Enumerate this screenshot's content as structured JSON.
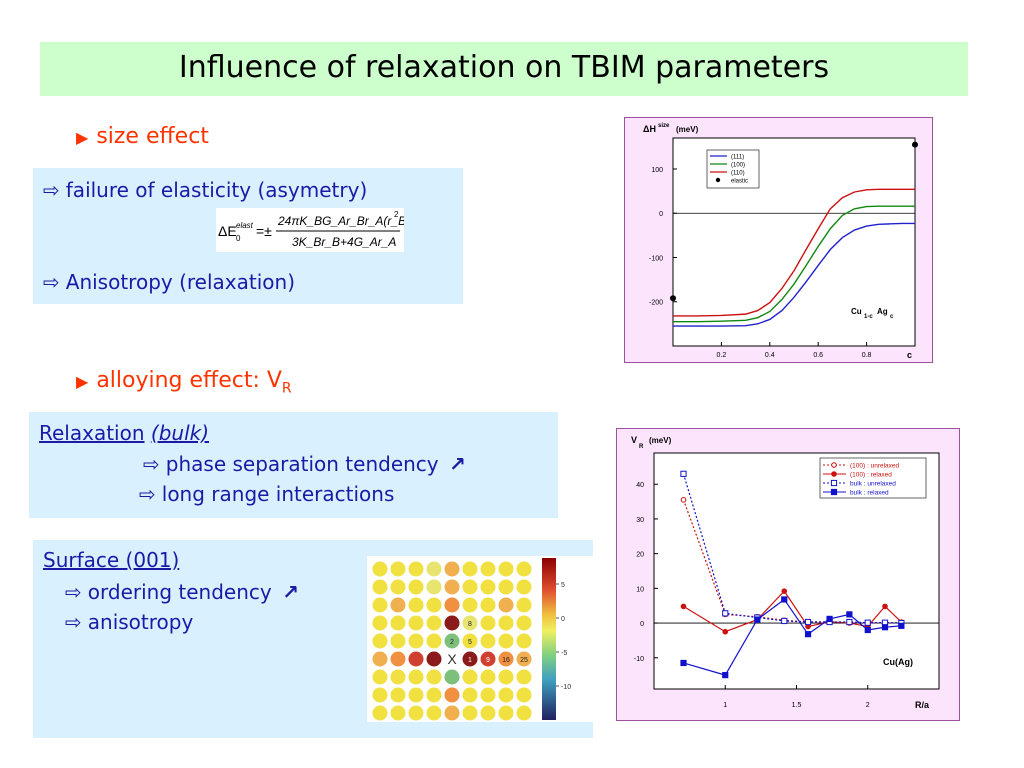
{
  "title": "Influence of relaxation on TBIM parameters",
  "size_effect": {
    "bullet": "size effect",
    "box_line1": "failure of elasticity (asymetry)",
    "box_line2": "Anisotropy (relaxation)",
    "formula": {
      "lhs": "ΔE",
      "lhs_sup": "elast",
      "lhs_sub": "0",
      "eq": "=±",
      "numerator": "24πK_BG_Ar_Br_A(r_B−r_A)",
      "numerator_sup": "2",
      "denominator": "3K_Br_B+4G_Ar_A"
    }
  },
  "alloying_effect": {
    "bullet": "alloying effect: V",
    "bullet_sub": "R"
  },
  "relaxation_box": {
    "heading": "Relaxation",
    "heading_italic": "(bulk)",
    "line1": "phase separation tendency",
    "line2": "long range interactions"
  },
  "surface_box": {
    "heading": "Surface (001)",
    "line1": "ordering tendency",
    "line2": "anisotropy"
  },
  "colors": {
    "accent_red": "#ff3300",
    "text_blue": "#1a1aa6",
    "box_bg": "#d9f0ff",
    "title_bg": "#ccffcc",
    "chart_bg": "#fce4fc"
  },
  "heatmap": {
    "center_label": "X",
    "cell_labels": [
      "8",
      "2",
      "5",
      "1",
      "9",
      "16",
      "25"
    ],
    "colorbar_ticks": [
      "5",
      "0",
      "-5",
      "-10"
    ]
  },
  "chart_data": [
    {
      "type": "line",
      "title": "ΔH",
      "title_sup": "size",
      "title_unit": "(meV)",
      "xlabel": "c",
      "annotation": "Cu",
      "annotation_sub1": "1-c",
      "annotation_mid": "Ag",
      "annotation_sub2": "c",
      "xlim": [
        0,
        1.0
      ],
      "ylim": [
        -300,
        170
      ],
      "xticks": [
        "0.2",
        "0.4",
        "0.6",
        "0.8"
      ],
      "yticks": [
        "100",
        "0",
        "-100",
        "-200"
      ],
      "grid": false,
      "legend_position": "top-center",
      "x": [
        0.0,
        0.1,
        0.2,
        0.3,
        0.35,
        0.4,
        0.45,
        0.5,
        0.55,
        0.6,
        0.65,
        0.7,
        0.75,
        0.8,
        0.85,
        0.9,
        0.95,
        1.0
      ],
      "series": [
        {
          "name": "(111)",
          "color": "#2222cc",
          "values": [
            -255,
            -255,
            -255,
            -254,
            -250,
            -240,
            -220,
            -190,
            -155,
            -118,
            -82,
            -55,
            -38,
            -29,
            -25,
            -24,
            -23,
            -23
          ]
        },
        {
          "name": "(100)",
          "color": "#118811",
          "values": [
            -245,
            -245,
            -244,
            -242,
            -236,
            -222,
            -195,
            -160,
            -118,
            -75,
            -35,
            -5,
            10,
            15,
            16,
            16,
            16,
            16
          ]
        },
        {
          "name": "(110)",
          "color": "#cc1111",
          "values": [
            -232,
            -232,
            -231,
            -228,
            -220,
            -202,
            -170,
            -130,
            -82,
            -35,
            10,
            35,
            48,
            53,
            54,
            54,
            54,
            54
          ]
        }
      ],
      "elastic_points": {
        "name": "elastic",
        "x": [
          0.0,
          1.0
        ],
        "values": [
          -192,
          155
        ]
      }
    },
    {
      "type": "line",
      "title": "V",
      "title_sub": "R",
      "title_unit": "(meV)",
      "xlabel": "R/a",
      "annotation": "Cu(Ag)",
      "xlim": [
        0.5,
        2.5
      ],
      "ylim": [
        -19,
        49
      ],
      "xticks": [
        "1",
        "1.5",
        "2"
      ],
      "yticks": [
        "40",
        "30",
        "20",
        "10",
        "0",
        "-10"
      ],
      "grid": false,
      "legend_position": "top-right",
      "x": [
        0.707,
        1.0,
        1.225,
        1.414,
        1.581,
        1.732,
        1.871,
        2.0,
        2.121,
        2.236
      ],
      "series": [
        {
          "name": "(100) : unrelaxed",
          "color": "#cc1111",
          "dashed": true,
          "marker": "circle-open",
          "values": [
            35.5,
            2.5,
            1.8,
            0.8,
            0.3,
            0.3,
            0.2,
            0.1,
            0.1,
            0.1
          ]
        },
        {
          "name": "(100) : relaxed",
          "color": "#cc1111",
          "dashed": false,
          "marker": "circle-filled",
          "values": [
            4.8,
            -2.5,
            1.0,
            9.2,
            -1.0,
            0.4,
            0.0,
            -1.0,
            4.8,
            0.3
          ]
        },
        {
          "name": "bulk : unrelaxed",
          "color": "#1111cc",
          "dashed": true,
          "marker": "square-open",
          "values": [
            43.0,
            2.8,
            1.6,
            0.6,
            0.3,
            0.3,
            0.3,
            0.1,
            0.1,
            0.0
          ]
        },
        {
          "name": "bulk : relaxed",
          "color": "#1111cc",
          "dashed": false,
          "marker": "square-filled",
          "values": [
            -11.5,
            -15.0,
            1.0,
            6.8,
            -3.2,
            1.2,
            2.5,
            -2.0,
            -1.2,
            -0.8
          ]
        }
      ]
    }
  ]
}
